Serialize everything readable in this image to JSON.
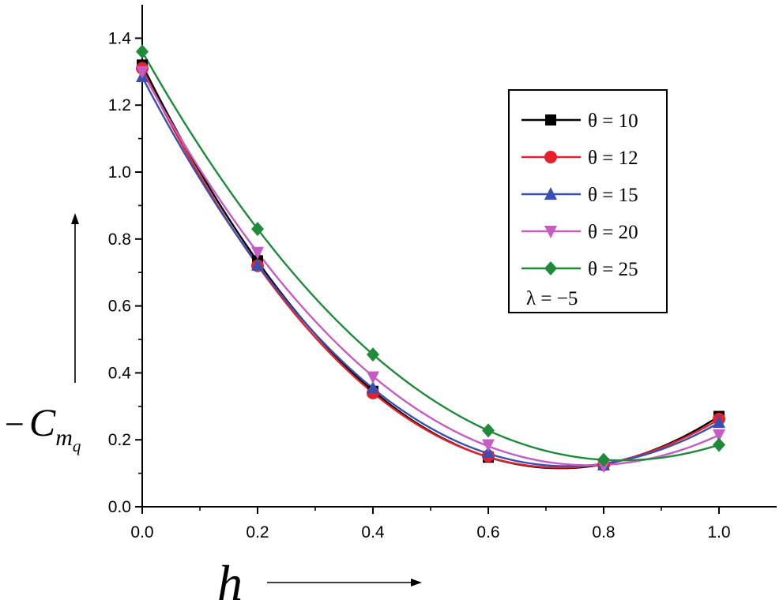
{
  "chart_data": {
    "type": "line",
    "title": "",
    "xlabel": "h",
    "ylabel_prefix": "−",
    "ylabel_main": "C",
    "ylabel_sub1": "m",
    "ylabel_sub2": "q",
    "xlim": [
      0.0,
      1.1
    ],
    "ylim": [
      0.0,
      1.5
    ],
    "xticks": [
      0.0,
      0.2,
      0.4,
      0.6,
      0.8,
      1.0
    ],
    "xtick_labels": [
      "0.0",
      "0.2",
      "0.4",
      "0.6",
      "0.8",
      "1.0"
    ],
    "yticks": [
      0.0,
      0.2,
      0.4,
      0.6,
      0.8,
      1.0,
      1.2,
      1.4
    ],
    "ytick_labels": [
      "0.0",
      "0.2",
      "0.4",
      "0.6",
      "0.8",
      "1.0",
      "1.2",
      "1.4"
    ],
    "grid": false,
    "legend_position": "top-right",
    "legend_note": "λ = −5",
    "x": [
      0.0,
      0.2,
      0.4,
      0.6,
      0.8,
      1.0
    ],
    "series": [
      {
        "name": "θ = 10",
        "color": "#000000",
        "marker": "square",
        "values": [
          1.32,
          0.735,
          0.345,
          0.148,
          0.128,
          0.27
        ]
      },
      {
        "name": "θ = 12",
        "color": "#e8202a",
        "marker": "circle",
        "values": [
          1.31,
          0.72,
          0.34,
          0.152,
          0.125,
          0.262
        ]
      },
      {
        "name": "θ = 15",
        "color": "#3a50b0",
        "marker": "triangle-up",
        "values": [
          1.285,
          0.722,
          0.355,
          0.162,
          0.125,
          0.252
        ]
      },
      {
        "name": "θ = 20",
        "color": "#c45cc4",
        "marker": "triangle-down",
        "values": [
          1.3,
          0.76,
          0.388,
          0.185,
          0.122,
          0.215
        ]
      },
      {
        "name": "θ = 25",
        "color": "#1f8a3a",
        "marker": "diamond",
        "values": [
          1.36,
          0.83,
          0.455,
          0.228,
          0.14,
          0.185
        ]
      }
    ]
  }
}
